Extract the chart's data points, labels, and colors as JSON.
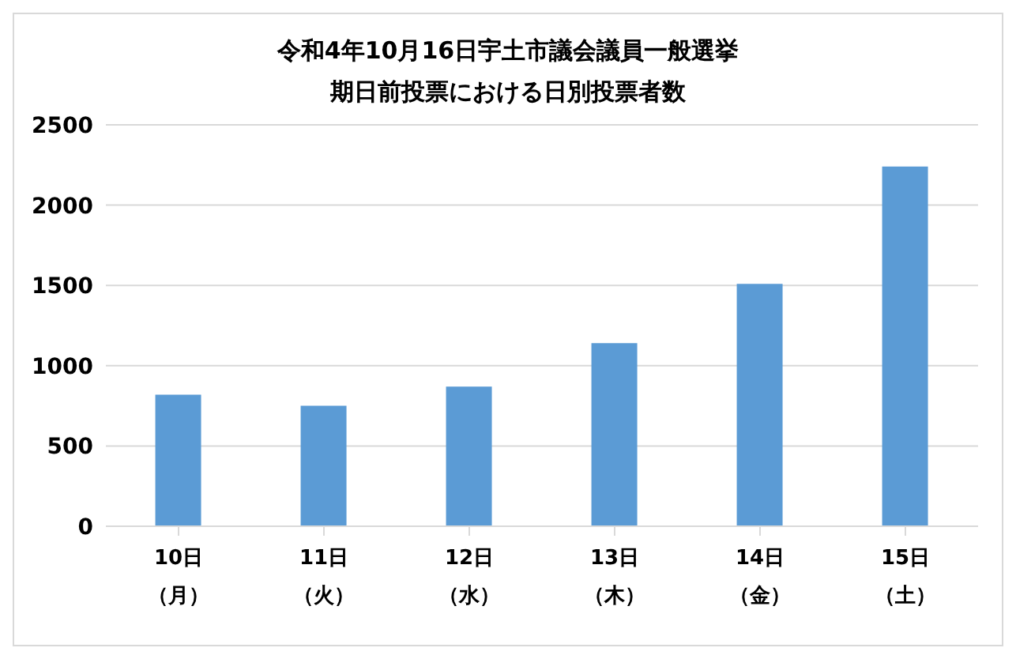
{
  "chart_data": {
    "type": "bar",
    "title": "令和4年10月16日宇土市議会議員一般選挙期日前投票における日別投票者数",
    "categories": [
      "10日（月）",
      "11日（火）",
      "12日（水）",
      "13日（木）",
      "14日（金）",
      "15日（土）"
    ],
    "values": [
      820,
      750,
      870,
      1140,
      1510,
      2240
    ],
    "color": "#5b9bd5",
    "ylim": [
      0,
      2500
    ],
    "yticks": [
      0,
      500,
      1000,
      1500,
      2000,
      2500
    ],
    "grid": "y"
  }
}
